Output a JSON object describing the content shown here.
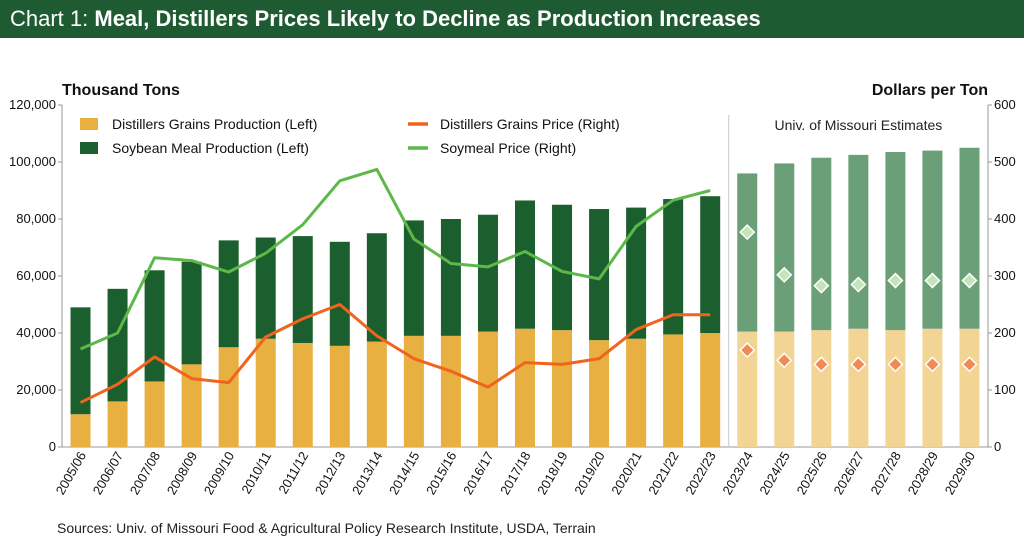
{
  "header": {
    "prefix": "Chart 1: ",
    "title": "Meal, Distillers Prices Likely to Decline as Production Increases"
  },
  "source": "Sources: Univ. of Missouri Food & Agricultural Policy Research Institute, USDA, Terrain",
  "chart_data": {
    "type": "bar",
    "title": "Meal, Distillers Prices Likely to Decline as Production Increases",
    "ylabel_left": "Thousand Tons",
    "ylabel_right": "Dollars per Ton",
    "ylim_left": [
      0,
      120000
    ],
    "ylim_right": [
      0,
      600
    ],
    "yticks_left": [
      "0",
      "20,000",
      "40,000",
      "60,000",
      "80,000",
      "100,000",
      "120,000"
    ],
    "yticks_right": [
      "0",
      "100",
      "200",
      "300",
      "400",
      "500",
      "600"
    ],
    "annotation": "Univ. of Missouri Estimates",
    "categories": [
      "2005/06",
      "2006/07",
      "2007/08",
      "2008/09",
      "2009/10",
      "2010/11",
      "2011/12",
      "2012/13",
      "2013/14",
      "2014/15",
      "2015/16",
      "2016/17",
      "2017/18",
      "2018/19",
      "2019/20",
      "2020/21",
      "2021/22",
      "2022/23",
      "2023/24",
      "2024/25",
      "2025/26",
      "2026/27",
      "2027/28",
      "2028/29",
      "2029/30"
    ],
    "estimate_start_index": 18,
    "series": [
      {
        "name": "Distillers Grains Production (Left)",
        "axis": "left",
        "kind": "bar",
        "color": "#e8b040",
        "estimate_color": "#f2d595",
        "values": [
          11500,
          16000,
          23000,
          29000,
          35000,
          38000,
          36500,
          35500,
          37000,
          39000,
          39000,
          40500,
          41500,
          41000,
          37500,
          38000,
          39500,
          40000,
          40500,
          40500,
          41000,
          41500,
          41000,
          41500,
          41500
        ]
      },
      {
        "name": "Soybean Meal Production (Left)",
        "axis": "left",
        "kind": "bar",
        "color": "#1c5f2e",
        "estimate_color": "#6b9f78",
        "values": [
          37500,
          39500,
          39000,
          36000,
          37500,
          35500,
          37500,
          36500,
          38000,
          40500,
          41000,
          41000,
          45000,
          44000,
          46000,
          46000,
          47500,
          48000,
          55500,
          59000,
          60500,
          61000,
          62500,
          62500,
          63500
        ]
      },
      {
        "name": "Distillers Grains Price (Right)",
        "axis": "right",
        "kind": "line",
        "color": "#f0641e",
        "values": [
          78,
          110,
          158,
          120,
          113,
          193,
          225,
          250,
          195,
          155,
          133,
          105,
          148,
          145,
          155,
          206,
          232,
          232,
          170,
          152,
          145,
          145,
          145,
          145,
          145
        ]
      },
      {
        "name": "Soymeal Price (Right)",
        "axis": "right",
        "kind": "line",
        "color": "#5cb848",
        "values": [
          172,
          200,
          332,
          327,
          307,
          340,
          390,
          467,
          487,
          365,
          322,
          316,
          343,
          308,
          295,
          387,
          433,
          450,
          377,
          302,
          283,
          285,
          292,
          292,
          292
        ]
      }
    ]
  }
}
